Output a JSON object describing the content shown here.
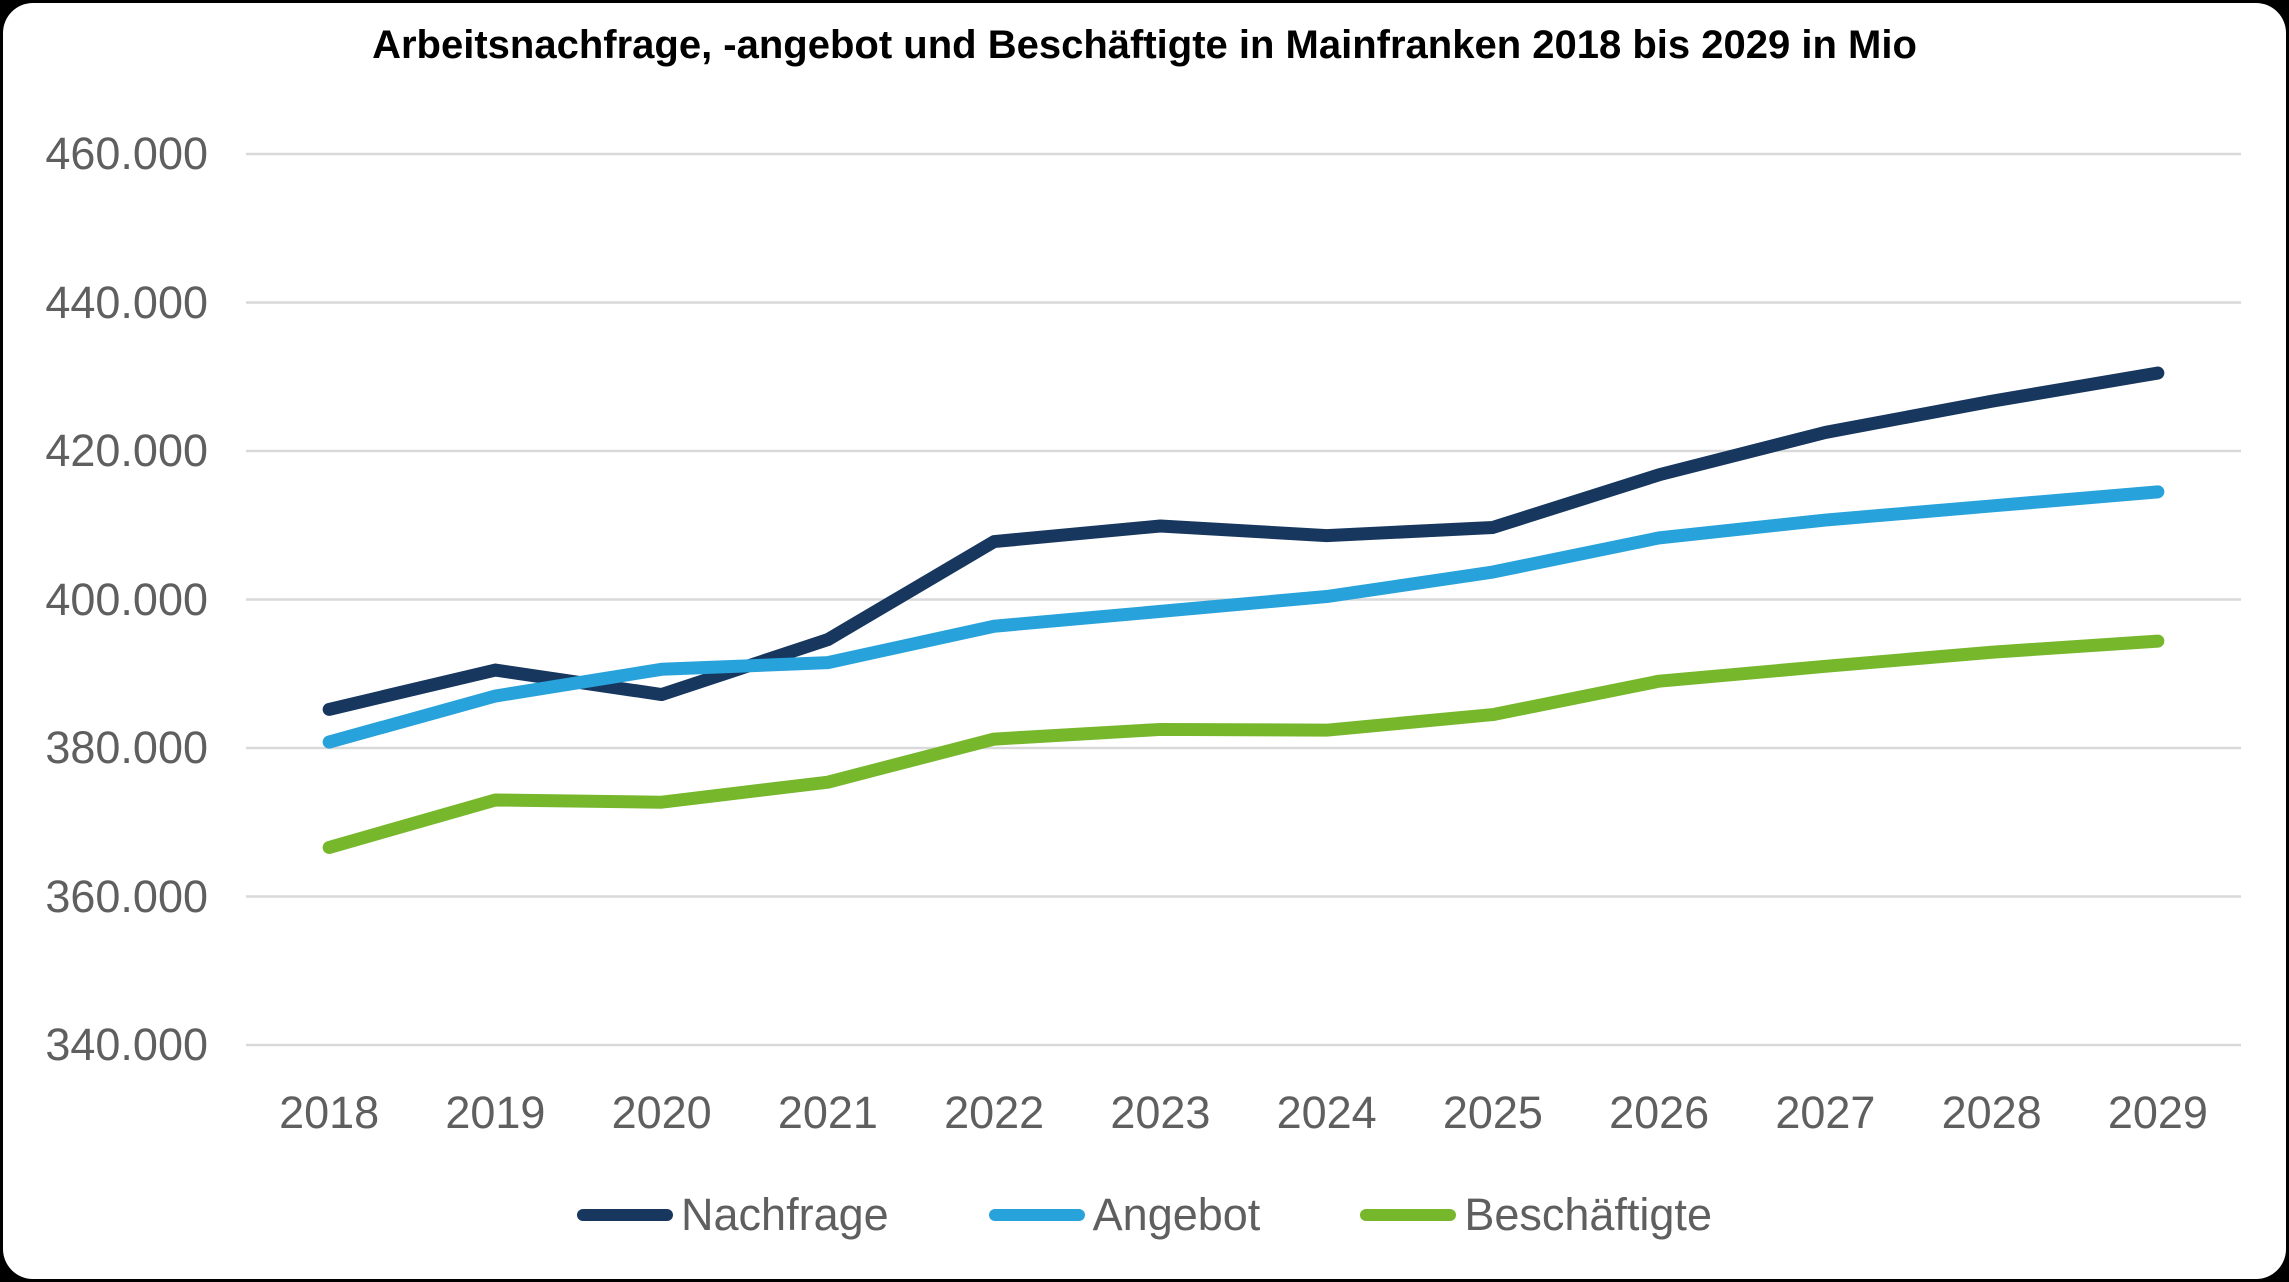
{
  "title": "Arbeitsnachfrage, -angebot und Beschäftigte in Mainfranken 2018 bis 2029 in Mio",
  "colors": {
    "background": "#000000",
    "canvas": "#ffffff",
    "title_text": "#000000",
    "axis_text": "#5f5f5f",
    "gridline": "#d9d9d9",
    "nachfrage": "#17375e",
    "angebot": "#28a2da",
    "beschaeftigte": "#77b72c"
  },
  "chart_data": {
    "type": "line",
    "title": "Arbeitsnachfrage, -angebot und Beschäftigte in Mainfranken 2018 bis 2029 in Mio",
    "categories": [
      "2018",
      "2019",
      "2020",
      "2021",
      "2022",
      "2023",
      "2024",
      "2025",
      "2026",
      "2027",
      "2028",
      "2029"
    ],
    "series": [
      {
        "name": "Nachfrage",
        "color": "#17375e",
        "values": [
          385200,
          390500,
          387200,
          394600,
          407800,
          409900,
          408600,
          409700,
          416800,
          422500,
          426700,
          430500
        ]
      },
      {
        "name": "Angebot",
        "color": "#28a2da",
        "values": [
          380800,
          387000,
          390600,
          391500,
          396400,
          398400,
          400400,
          403700,
          408300,
          410700,
          412600,
          414500
        ]
      },
      {
        "name": "Beschäftigte",
        "color": "#77b72c",
        "values": [
          366600,
          373000,
          372700,
          375400,
          381200,
          382500,
          382400,
          384500,
          389000,
          391000,
          392900,
          394400
        ]
      }
    ],
    "ylim": [
      340000,
      460000
    ],
    "ytick_step": 20000,
    "ytick_labels": [
      "340.000",
      "360.000",
      "380.000",
      "400.000",
      "420.000",
      "440.000",
      "460.000"
    ],
    "xlabel": "",
    "ylabel": "",
    "grid": true,
    "legend_position": "bottom"
  }
}
